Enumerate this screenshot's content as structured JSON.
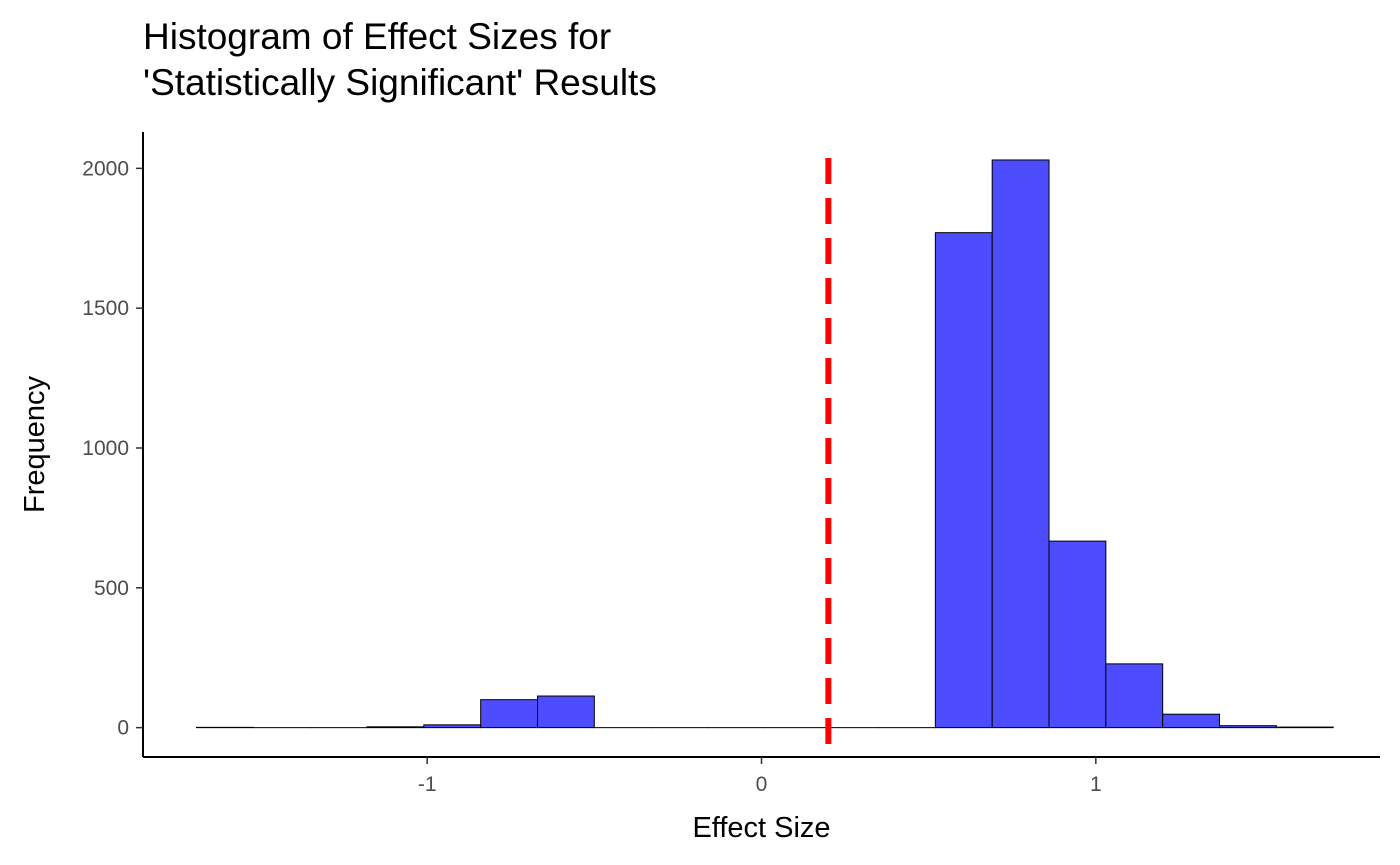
{
  "chart_data": {
    "type": "bar",
    "title": [
      "Histogram of Effect Sizes for",
      "'Statistically Significant' Results"
    ],
    "xlabel": "Effect Size",
    "ylabel": "Frequency",
    "xlim": [
      -1.85,
      1.85
    ],
    "ylim": [
      -105,
      2130
    ],
    "x_ticks": [
      {
        "value": -1,
        "label": "-1"
      },
      {
        "value": 0,
        "label": "0"
      },
      {
        "value": 1,
        "label": "1"
      }
    ],
    "y_ticks": [
      {
        "value": 0,
        "label": "0"
      },
      {
        "value": 500,
        "label": "500"
      },
      {
        "value": 1000,
        "label": "1000"
      },
      {
        "value": 1500,
        "label": "1500"
      },
      {
        "value": 2000,
        "label": "2000"
      }
    ],
    "bin_width": 0.17,
    "bins": [
      {
        "x0": -1.69,
        "x1": -1.52,
        "count": 1
      },
      {
        "x0": -1.52,
        "x1": -1.35,
        "count": 0
      },
      {
        "x0": -1.35,
        "x1": -1.18,
        "count": 0
      },
      {
        "x0": -1.18,
        "x1": -1.01,
        "count": 3
      },
      {
        "x0": -1.01,
        "x1": -0.84,
        "count": 10
      },
      {
        "x0": -0.84,
        "x1": -0.67,
        "count": 100
      },
      {
        "x0": -0.67,
        "x1": -0.5,
        "count": 113
      },
      {
        "x0": -0.5,
        "x1": -0.33,
        "count": 0
      },
      {
        "x0": -0.33,
        "x1": -0.16,
        "count": 0
      },
      {
        "x0": -0.16,
        "x1": 0.01,
        "count": 0
      },
      {
        "x0": 0.01,
        "x1": 0.18,
        "count": 0
      },
      {
        "x0": 0.18,
        "x1": 0.35,
        "count": 0
      },
      {
        "x0": 0.35,
        "x1": 0.52,
        "count": 0
      },
      {
        "x0": 0.52,
        "x1": 0.69,
        "count": 1770
      },
      {
        "x0": 0.69,
        "x1": 0.86,
        "count": 2030
      },
      {
        "x0": 0.86,
        "x1": 1.03,
        "count": 667
      },
      {
        "x0": 1.03,
        "x1": 1.2,
        "count": 228
      },
      {
        "x0": 1.2,
        "x1": 1.37,
        "count": 48
      },
      {
        "x0": 1.37,
        "x1": 1.54,
        "count": 7
      },
      {
        "x0": 1.54,
        "x1": 1.71,
        "count": 2
      }
    ],
    "reference_line": {
      "x": 0.2,
      "style": "dashed",
      "color": "#ff0000"
    },
    "bar_fill": "#4d4dff",
    "bar_stroke": "#000000",
    "grid": false,
    "legend": "none"
  }
}
